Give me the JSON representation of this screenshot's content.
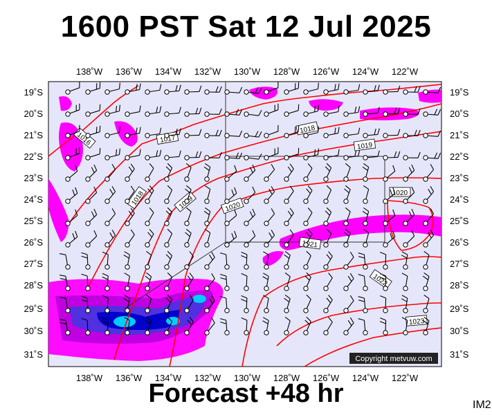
{
  "title": "1600 PST Sat 12 Jul 2025",
  "footer": "Forecast +48 hr",
  "product_code": "IM2",
  "copyright": "Copyright metvuw.com",
  "map": {
    "lon_labels": [
      "138˚W",
      "136˚W",
      "134˚W",
      "132˚W",
      "130˚W",
      "128˚W",
      "126˚W",
      "124˚W",
      "122˚W"
    ],
    "lat_labels": [
      "19˚S",
      "20˚S",
      "21˚S",
      "22˚S",
      "23˚S",
      "24˚S",
      "25˚S",
      "26˚S",
      "27˚S",
      "28˚S",
      "29˚S",
      "30˚S",
      "31˚S"
    ],
    "isobar_labels": [
      "1016",
      "1017",
      "1018",
      "1019",
      "1020",
      "1018",
      "1019",
      "1020",
      "1021",
      "1022",
      "1023"
    ],
    "colors": {
      "background": "#e6e6fa",
      "isobar": "#ff0000",
      "rain_light": "#ff00ff",
      "rain_heavy": "#0000cc"
    }
  }
}
